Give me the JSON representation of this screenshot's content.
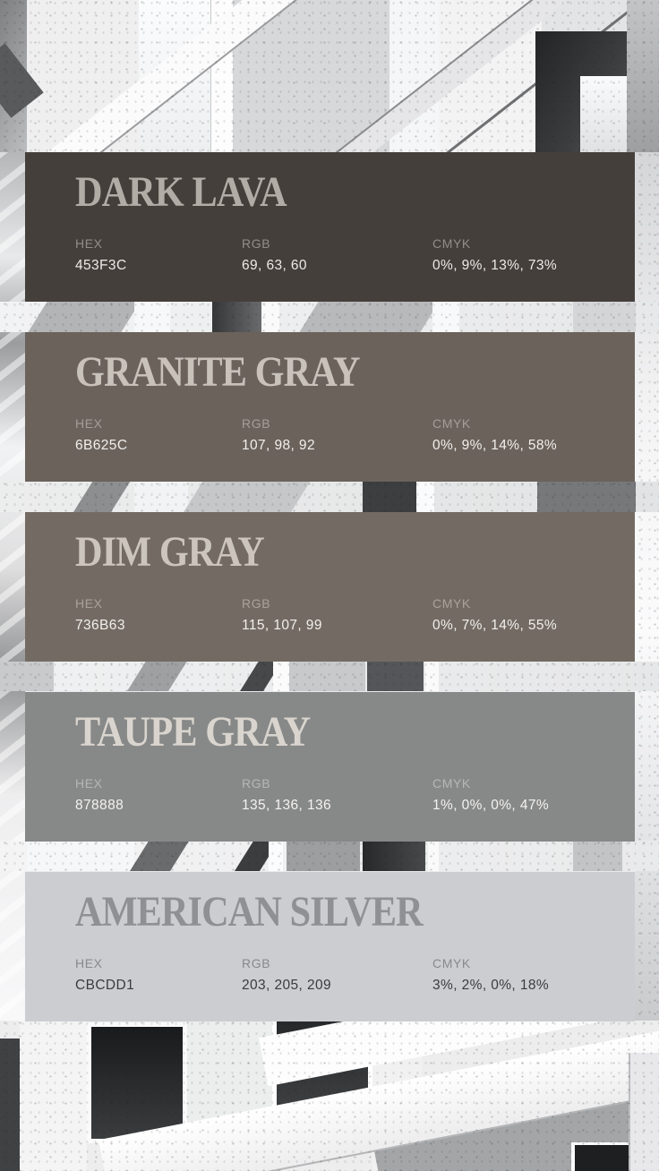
{
  "palette": {
    "labels": {
      "hex": "HEX",
      "rgb": "RGB",
      "cmyk": "CMYK"
    },
    "cards": [
      {
        "name": "DARK LAVA",
        "hex": "453F3C",
        "rgb": "69, 63, 60",
        "cmyk": "0%, 9%, 13%, 73%",
        "swatch_hex": "#453F3C",
        "title_color": "#B2ACA6",
        "label_color": "#938D88",
        "value_color": "#ECEAE7"
      },
      {
        "name": "GRANITE GRAY",
        "hex": "6B625C",
        "rgb": "107, 98, 92",
        "cmyk": "0%, 9%, 14%, 58%",
        "swatch_hex": "#6B625C",
        "title_color": "#C9C2BB",
        "label_color": "#A59E98",
        "value_color": "#F1EFEC"
      },
      {
        "name": "DIM GRAY",
        "hex": "736B63",
        "rgb": "115, 107, 99",
        "cmyk": "0%, 7%, 14%, 55%",
        "swatch_hex": "#736B63",
        "title_color": "#CBC5BE",
        "label_color": "#A9A29B",
        "value_color": "#F1EFEC"
      },
      {
        "name": "TAUPE GRAY",
        "hex": "878888",
        "rgb": "135, 136, 136",
        "cmyk": "1%, 0%, 0%, 47%",
        "swatch_hex": "#878888",
        "title_color": "#D9D5CE",
        "label_color": "#B7B7B5",
        "value_color": "#F4F3F1"
      },
      {
        "name": "AMERICAN SILVER",
        "hex": "CBCDD1",
        "rgb": "203, 205, 209",
        "cmyk": "3%, 2%, 0%, 18%",
        "swatch_hex": "#CBCDD1",
        "title_color": "#8E9094",
        "label_color": "#87898D",
        "value_color": "#3A3B3E"
      }
    ]
  }
}
